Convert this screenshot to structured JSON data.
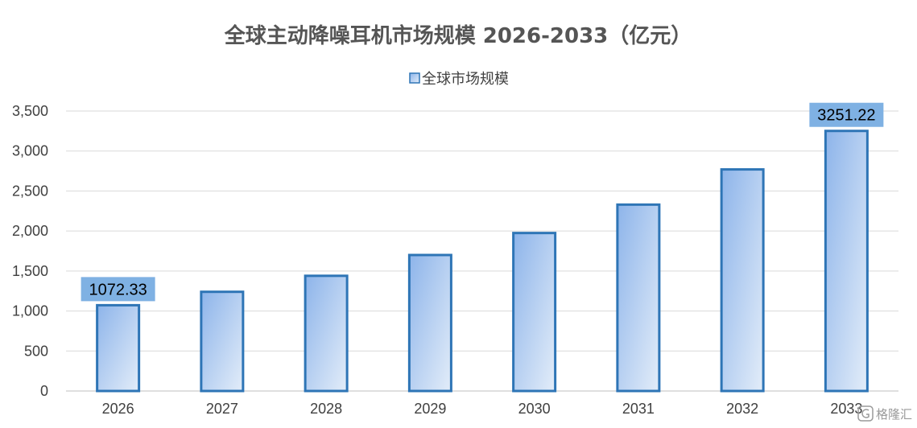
{
  "chart_data": {
    "type": "bar",
    "title": "全球主动降噪耳机市场规模 2026-2033（亿元）",
    "xlabel": "",
    "ylabel": "",
    "categories": [
      "2026",
      "2027",
      "2028",
      "2029",
      "2030",
      "2031",
      "2032",
      "2033"
    ],
    "series": [
      {
        "name": "全球市场规模",
        "values": [
          1072.33,
          1240,
          1440,
          1700,
          1975,
          2330,
          2770,
          3251.22
        ]
      }
    ],
    "data_labels": [
      {
        "category": "2026",
        "text": "1072.33"
      },
      {
        "category": "2033",
        "text": "3251.22"
      }
    ],
    "ylim": [
      0,
      3500
    ],
    "yticks": [
      0,
      500,
      1000,
      1500,
      2000,
      2500,
      3000,
      3500
    ],
    "ytick_labels": [
      "0",
      "500",
      "1,000",
      "1,500",
      "2,000",
      "2,500",
      "3,000",
      "3,500"
    ],
    "grid": true,
    "legend_position": "top-center",
    "colors": {
      "bar_fill_top": "#8db4ea",
      "bar_fill_bottom": "#e3edf9",
      "bar_border": "#2e75b6",
      "data_label_bg": "#7fb1e3",
      "gridline": "#d9d9d9",
      "axis": "#bfbfbf"
    }
  },
  "watermark": {
    "icon": "gelonghui-logo-icon",
    "text": "格隆汇"
  }
}
